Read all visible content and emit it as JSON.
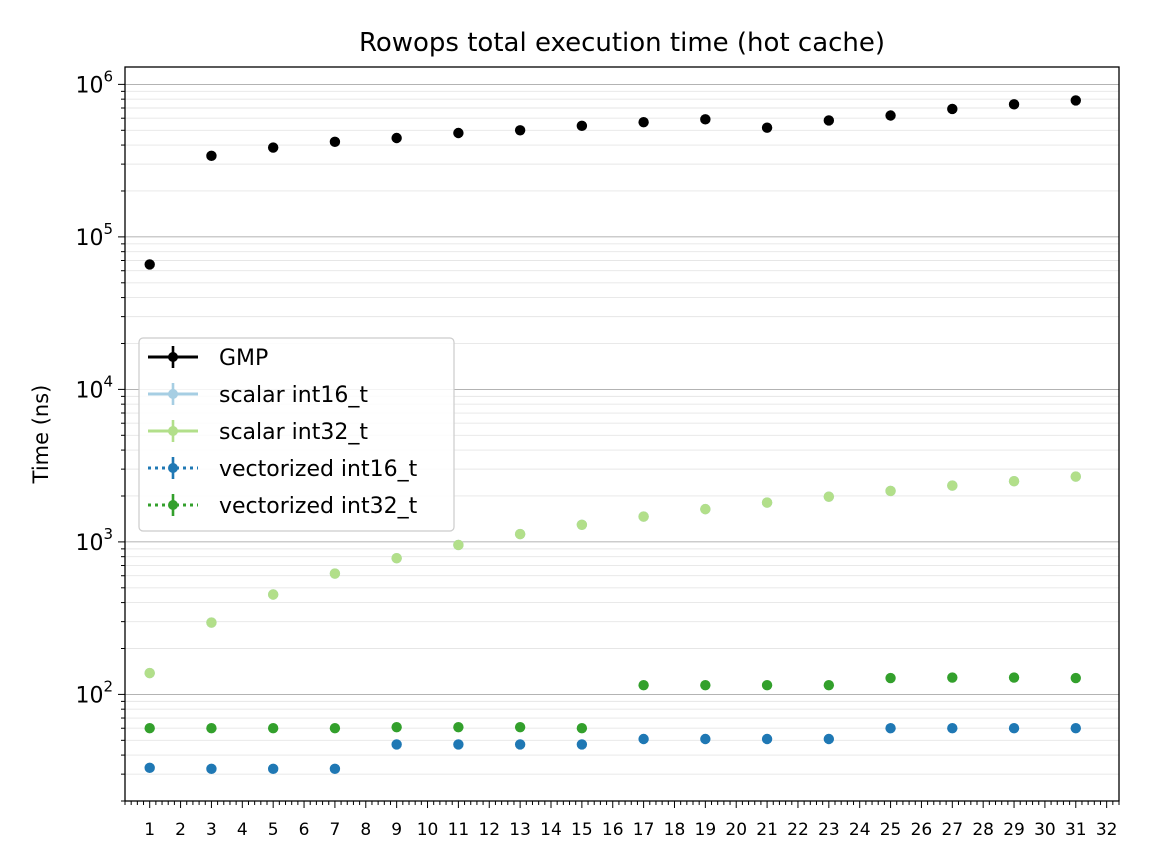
{
  "chart_data": {
    "type": "scatter",
    "title": "Rowops total execution time (hot cache)",
    "xlabel": "",
    "ylabel": "Time (ns)",
    "y_scale": "log",
    "ylim": [
      20,
      1300000
    ],
    "xlim": [
      0.2,
      32.4
    ],
    "x_ticks": [
      1,
      2,
      3,
      4,
      5,
      6,
      7,
      8,
      9,
      10,
      11,
      12,
      13,
      14,
      15,
      16,
      17,
      18,
      19,
      20,
      21,
      22,
      23,
      24,
      25,
      26,
      27,
      28,
      29,
      30,
      31,
      32
    ],
    "y_ticks": [
      {
        "value": 100,
        "base": "10",
        "exp": "2"
      },
      {
        "value": 1000,
        "base": "10",
        "exp": "3"
      },
      {
        "value": 10000,
        "base": "10",
        "exp": "4"
      },
      {
        "value": 100000,
        "base": "10",
        "exp": "5"
      },
      {
        "value": 1000000,
        "base": "10",
        "exp": "6"
      }
    ],
    "grid": "major and minor horizontal lines",
    "legend_position": "center-left",
    "x": [
      1,
      3,
      5,
      7,
      9,
      11,
      13,
      15,
      17,
      19,
      21,
      23,
      25,
      27,
      29,
      31
    ],
    "series": [
      {
        "name": "GMP",
        "color": "#000000",
        "line_style": "solid",
        "values": [
          66000,
          340000,
          385000,
          420000,
          445000,
          480000,
          500000,
          535000,
          565000,
          590000,
          520000,
          580000,
          625000,
          690000,
          740000,
          785000
        ]
      },
      {
        "name": "scalar int16_t",
        "color": "#a6cee3",
        "line_style": "solid",
        "values": [
          138,
          296,
          452,
          620,
          782,
          955,
          1125,
          1295,
          1465,
          1640,
          1810,
          1980,
          2160,
          2340,
          2500,
          2680
        ]
      },
      {
        "name": "scalar int32_t",
        "color": "#b2df8a",
        "line_style": "solid",
        "values": [
          138,
          296,
          452,
          620,
          782,
          955,
          1125,
          1295,
          1465,
          1640,
          1810,
          1980,
          2160,
          2340,
          2500,
          2680
        ]
      },
      {
        "name": "vectorized int16_t",
        "color": "#1f78b4",
        "line_style": "dotted",
        "values": [
          33,
          32.5,
          32.5,
          32.5,
          47,
          47,
          47,
          47,
          51,
          51,
          51,
          51,
          60,
          60,
          60,
          60
        ]
      },
      {
        "name": "vectorized int32_t",
        "color": "#33a02c",
        "line_style": "dotted",
        "values": [
          60,
          60,
          60,
          60,
          61,
          61,
          61,
          60,
          115,
          115,
          115,
          115,
          128,
          129,
          129,
          128
        ]
      }
    ]
  }
}
